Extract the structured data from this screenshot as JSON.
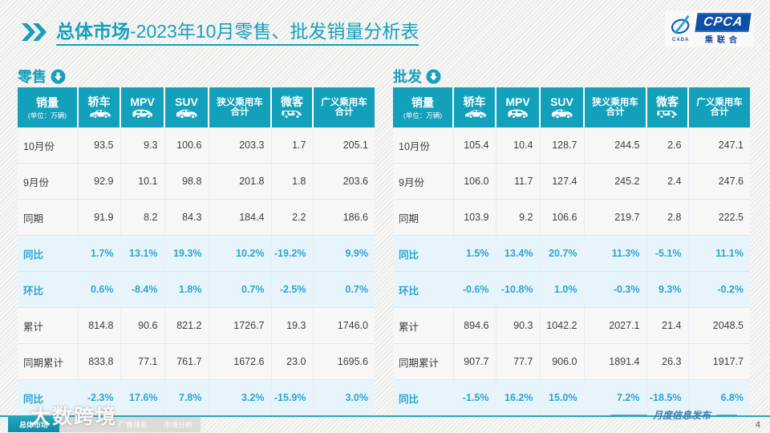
{
  "page": {
    "title_section": "总体市场",
    "title_rest": "-2023年10月零售、批发销量分析表",
    "publish_label": "月度信息发布",
    "page_number": "4",
    "watermark": "大数跨境",
    "cpca_watermark": "CPCA 乘联合"
  },
  "logo": {
    "main": "CPCA",
    "sub": "乘联合",
    "left_caption": "CADA"
  },
  "table_header": {
    "title": "销量",
    "unit": "(单位：万辆)"
  },
  "columns": [
    {
      "label": "轿车",
      "icon": "sedan"
    },
    {
      "label": "MPV",
      "icon": "mpv"
    },
    {
      "label": "SUV",
      "icon": "suv"
    },
    {
      "label": "狭义乘用车",
      "label2": "合计"
    },
    {
      "label": "微客",
      "icon": "van"
    },
    {
      "label": "广义乘用车",
      "label2": "合计"
    }
  ],
  "tables": [
    {
      "section_label": "零售",
      "rows": [
        {
          "label": "10月份",
          "values": [
            "93.5",
            "9.3",
            "100.6",
            "203.3",
            "1.7",
            "205.1"
          ],
          "highlight": false
        },
        {
          "label": "9月份",
          "values": [
            "92.9",
            "10.1",
            "98.8",
            "201.8",
            "1.8",
            "203.6"
          ],
          "highlight": false
        },
        {
          "label": "同期",
          "values": [
            "91.9",
            "8.2",
            "84.3",
            "184.4",
            "2.2",
            "186.6"
          ],
          "highlight": false
        },
        {
          "label": "同比",
          "values": [
            "1.7%",
            "13.1%",
            "19.3%",
            "10.2%",
            "-19.2%",
            "9.9%"
          ],
          "highlight": true
        },
        {
          "label": "环比",
          "values": [
            "0.6%",
            "-8.4%",
            "1.8%",
            "0.7%",
            "-2.5%",
            "0.7%"
          ],
          "highlight": true
        },
        {
          "label": "累计",
          "values": [
            "814.8",
            "90.6",
            "821.2",
            "1726.7",
            "19.3",
            "1746.0"
          ],
          "highlight": false
        },
        {
          "label": "同期累计",
          "values": [
            "833.8",
            "77.1",
            "761.7",
            "1672.6",
            "23.0",
            "1695.6"
          ],
          "highlight": false
        },
        {
          "label": "同比",
          "values": [
            "-2.3%",
            "17.6%",
            "7.8%",
            "3.2%",
            "-15.9%",
            "3.0%"
          ],
          "highlight": true
        }
      ]
    },
    {
      "section_label": "批发",
      "rows": [
        {
          "label": "10月份",
          "values": [
            "105.4",
            "10.4",
            "128.7",
            "244.5",
            "2.6",
            "247.1"
          ],
          "highlight": false
        },
        {
          "label": "9月份",
          "values": [
            "106.0",
            "11.7",
            "127.4",
            "245.2",
            "2.4",
            "247.6"
          ],
          "highlight": false
        },
        {
          "label": "同期",
          "values": [
            "103.9",
            "9.2",
            "106.6",
            "219.7",
            "2.8",
            "222.5"
          ],
          "highlight": false
        },
        {
          "label": "同比",
          "values": [
            "1.5%",
            "13.4%",
            "20.7%",
            "11.3%",
            "-5.1%",
            "11.1%"
          ],
          "highlight": true
        },
        {
          "label": "环比",
          "values": [
            "-0.6%",
            "-10.8%",
            "1.0%",
            "-0.3%",
            "9.3%",
            "-0.2%"
          ],
          "highlight": true
        },
        {
          "label": "累计",
          "values": [
            "894.6",
            "90.3",
            "1042.2",
            "2027.1",
            "21.4",
            "2048.5"
          ],
          "highlight": false
        },
        {
          "label": "同期累计",
          "values": [
            "907.7",
            "77.7",
            "906.0",
            "1891.4",
            "26.3",
            "1917.7"
          ],
          "highlight": false
        },
        {
          "label": "同比",
          "values": [
            "-1.5%",
            "16.2%",
            "15.0%",
            "7.2%",
            "-18.5%",
            "6.8%"
          ],
          "highlight": true
        }
      ]
    }
  ],
  "footer_tabs": [
    {
      "label": "总体市场",
      "active": true
    },
    {
      "label": "",
      "active": false
    },
    {
      "label": "厂商排名",
      "active": false
    },
    {
      "label": "市场分析",
      "active": false
    }
  ],
  "colors": {
    "teal": "#13a0bb",
    "percent_blue": "#2ba4d3",
    "highlight_row_bg": "#e8f4fb",
    "logo_blue": "#0f4fa8",
    "footer_line": "#27a7bd"
  }
}
